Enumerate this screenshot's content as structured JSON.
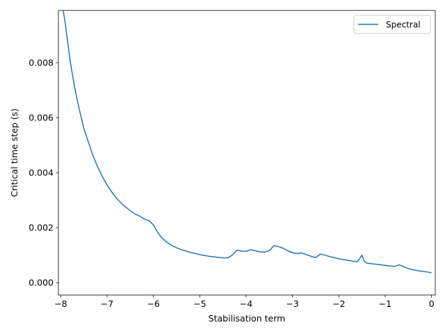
{
  "chart_data": {
    "type": "line",
    "title": "",
    "xlabel": "Stabilisation term",
    "ylabel": "Critical time step (s)",
    "xlim": [
      -8.05,
      0.08
    ],
    "ylim": [
      -0.00045,
      0.0099
    ],
    "xticks": [
      -8,
      -7,
      -6,
      -5,
      -4,
      -3,
      -2,
      -1,
      0
    ],
    "xtick_labels": [
      "−8",
      "−7",
      "−6",
      "−5",
      "−4",
      "−3",
      "−2",
      "−1",
      "0"
    ],
    "yticks": [
      0.0,
      0.002,
      0.004,
      0.006,
      0.008
    ],
    "ytick_labels": [
      "0.000",
      "0.002",
      "0.004",
      "0.006",
      "0.008"
    ],
    "grid": false,
    "legend_position": "top-right",
    "series": [
      {
        "name": "Spectral",
        "color": "#1f77b4",
        "x": [
          -8.0,
          -7.9,
          -7.8,
          -7.7,
          -7.6,
          -7.5,
          -7.4,
          -7.3,
          -7.2,
          -7.1,
          -7.0,
          -6.9,
          -6.8,
          -6.7,
          -6.6,
          -6.5,
          -6.4,
          -6.3,
          -6.2,
          -6.1,
          -6.0,
          -5.9,
          -5.8,
          -5.7,
          -5.6,
          -5.5,
          -5.4,
          -5.3,
          -5.2,
          -5.1,
          -5.0,
          -4.9,
          -4.8,
          -4.7,
          -4.6,
          -4.5,
          -4.4,
          -4.3,
          -4.2,
          -4.1,
          -4.0,
          -3.9,
          -3.8,
          -3.7,
          -3.6,
          -3.5,
          -3.4,
          -3.3,
          -3.2,
          -3.1,
          -3.0,
          -2.9,
          -2.8,
          -2.7,
          -2.6,
          -2.5,
          -2.4,
          -2.3,
          -2.2,
          -2.1,
          -2.0,
          -1.9,
          -1.8,
          -1.7,
          -1.6,
          -1.5,
          -1.45,
          -1.4,
          -1.3,
          -1.2,
          -1.1,
          -1.0,
          -0.9,
          -0.8,
          -0.7,
          -0.6,
          -0.5,
          -0.4,
          -0.3,
          -0.2,
          -0.1,
          0.0
        ],
        "y": [
          0.0105,
          0.0094,
          0.0081,
          0.0071,
          0.0063,
          0.0056,
          0.0051,
          0.0046,
          0.0042,
          0.00385,
          0.00355,
          0.0033,
          0.00308,
          0.0029,
          0.00275,
          0.00262,
          0.0025,
          0.00242,
          0.00232,
          0.00226,
          0.0021,
          0.0018,
          0.0016,
          0.00146,
          0.00135,
          0.00127,
          0.0012,
          0.00115,
          0.0011,
          0.00106,
          0.00102,
          0.00099,
          0.00096,
          0.00094,
          0.00092,
          0.0009,
          0.0009,
          0.001,
          0.00118,
          0.00115,
          0.00114,
          0.0012,
          0.00116,
          0.00112,
          0.00111,
          0.00116,
          0.00135,
          0.00131,
          0.00125,
          0.00116,
          0.00109,
          0.00106,
          0.00108,
          0.00102,
          0.00096,
          0.00091,
          0.00104,
          0.001,
          0.00095,
          0.00091,
          0.00087,
          0.00084,
          0.00081,
          0.00078,
          0.00076,
          0.001,
          0.00077,
          0.00071,
          0.00069,
          0.00067,
          0.00065,
          0.00063,
          0.00061,
          0.00059,
          0.00065,
          0.00058,
          0.00051,
          0.00047,
          0.00044,
          0.00041,
          0.00039,
          0.00036
        ]
      }
    ]
  }
}
